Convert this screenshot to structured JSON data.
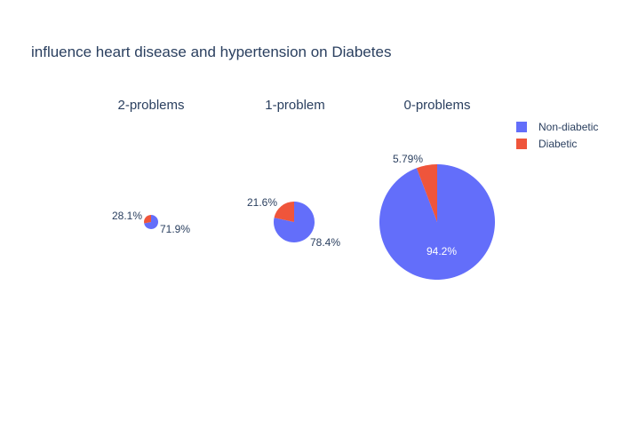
{
  "chart_data": {
    "type": "pie",
    "title": "influence heart disease and hypertension on Diabetes",
    "legend": {
      "placement": "top-right",
      "entries": [
        {
          "name": "Non-diabetic",
          "color": "#636efa"
        },
        {
          "name": "Diabetic",
          "color": "#ef553b"
        }
      ]
    },
    "pies": [
      {
        "subtitle": "2-problems",
        "slices": [
          {
            "name": "Non-diabetic",
            "value": 71.9,
            "label": "71.9%"
          },
          {
            "name": "Diabetic",
            "value": 28.1,
            "label": "28.1%"
          }
        ]
      },
      {
        "subtitle": "1-problem",
        "slices": [
          {
            "name": "Non-diabetic",
            "value": 78.4,
            "label": "78.4%"
          },
          {
            "name": "Diabetic",
            "value": 21.6,
            "label": "21.6%"
          }
        ]
      },
      {
        "subtitle": "0-problems",
        "slices": [
          {
            "name": "Non-diabetic",
            "value": 94.2,
            "label": "94.2%"
          },
          {
            "name": "Diabetic",
            "value": 5.79,
            "label": "5.79%"
          }
        ]
      }
    ]
  }
}
